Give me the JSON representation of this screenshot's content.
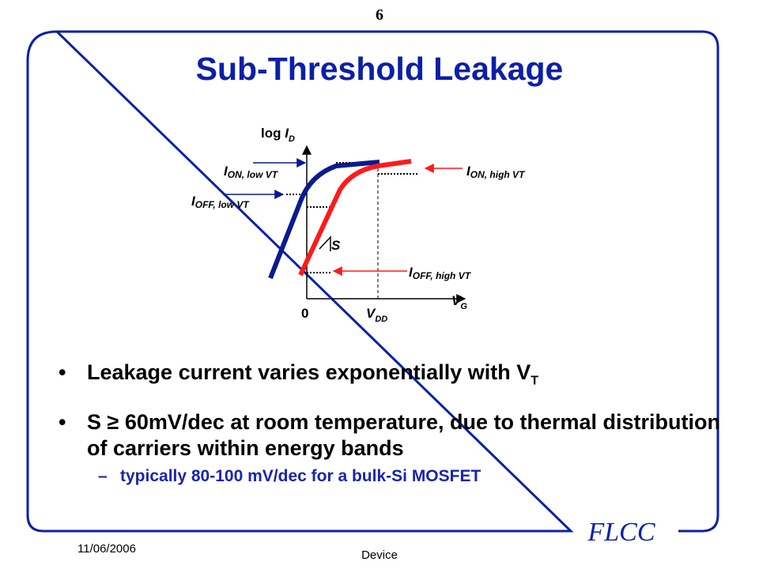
{
  "page_number": "6",
  "title": "Sub-Threshold Leakage",
  "diagram": {
    "y_axis": {
      "prefix": "log ",
      "var": "I",
      "sub": "D"
    },
    "x_axis": {
      "var": "V",
      "sub": "G"
    },
    "origin_label": "0",
    "vdd": {
      "var": "V",
      "sub": "DD"
    },
    "labels": {
      "ion_low": {
        "main": "I",
        "sub": "ON, low VT"
      },
      "ioff_low": {
        "main": "I",
        "sub": "OFF, low VT"
      },
      "ion_high": {
        "main": "I",
        "sub": "ON, high VT"
      },
      "ioff_high": {
        "main": "I",
        "sub": "OFF, high VT"
      },
      "slope": "S"
    },
    "colors": {
      "low_vt": "#0b1a8f",
      "high_vt": "#ff1a1a",
      "axis": "#000000"
    }
  },
  "bullets": [
    {
      "text": "Leakage current varies exponentially with V",
      "sub": "T"
    },
    {
      "text": "S ≥ 60mV/dec at room temperature, due to thermal distribution of carriers within energy bands",
      "sub": ""
    }
  ],
  "sub_bullet": "typically 80-100 mV/dec for a bulk-Si MOSFET",
  "footer": {
    "date": "11/06/2006",
    "center": "Device",
    "logo": "FLCC"
  },
  "colors": {
    "title": "#0b20a8",
    "frame": "#0b20a8",
    "sub_bullet": "#1a24b0"
  }
}
